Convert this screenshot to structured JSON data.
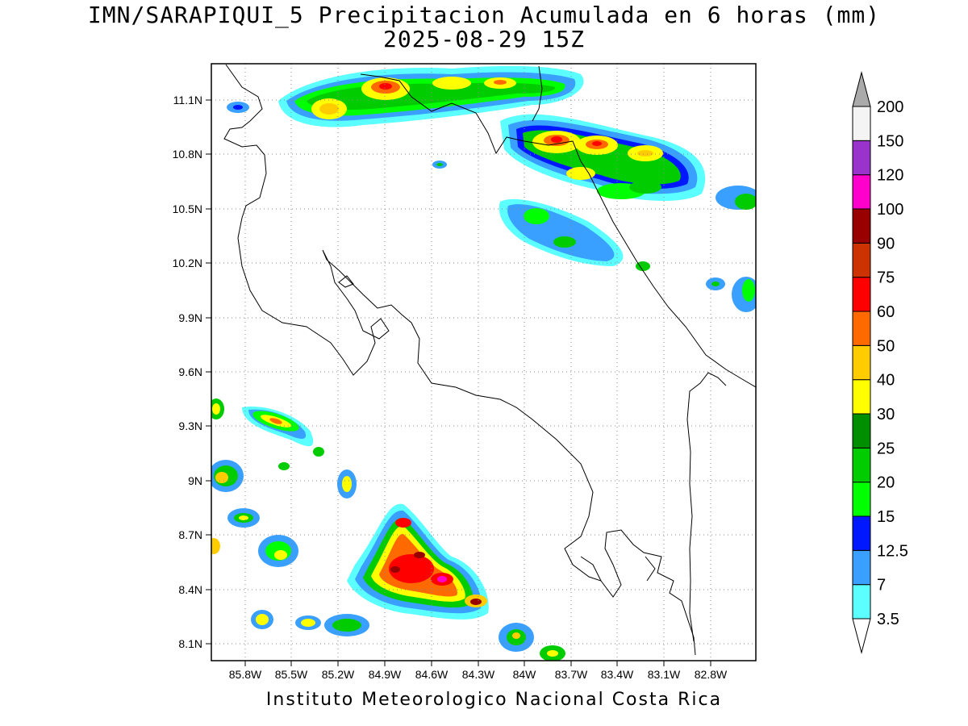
{
  "title": {
    "line1": "IMN/SARAPIQUI_5 Precipitacion Acumulada en 6 horas (mm)",
    "line2": "2025-08-29 15Z"
  },
  "footer": "Instituto Meteorologico Nacional Costa Rica",
  "map": {
    "lon_ticks": [
      "85.8W",
      "85.5W",
      "85.2W",
      "84.9W",
      "84.6W",
      "84.3W",
      "84W",
      "83.7W",
      "83.4W",
      "83.1W",
      "82.8W"
    ],
    "lat_ticks": [
      "11.1N",
      "10.8N",
      "10.5N",
      "10.2N",
      "9.9N",
      "9.6N",
      "9.3N",
      "9N",
      "8.7N",
      "8.4N",
      "8.1N"
    ],
    "grid": "dotted"
  },
  "colorbar": {
    "labels": [
      "3.5",
      "7",
      "12.5",
      "15",
      "20",
      "25",
      "30",
      "40",
      "50",
      "60",
      "75",
      "90",
      "100",
      "120",
      "150",
      "200"
    ],
    "colors": [
      "#5cffff",
      "#3aa0ff",
      "#0018ff",
      "#00ff00",
      "#00cc00",
      "#008f00",
      "#ffff00",
      "#ffcc00",
      "#ff6a00",
      "#ff0000",
      "#cc3300",
      "#990000",
      "#ff00cc",
      "#9933cc",
      "#f4f4f4"
    ],
    "cap_colors": {
      "top": "#aaaaaa",
      "bottom": "#ffffff"
    }
  }
}
